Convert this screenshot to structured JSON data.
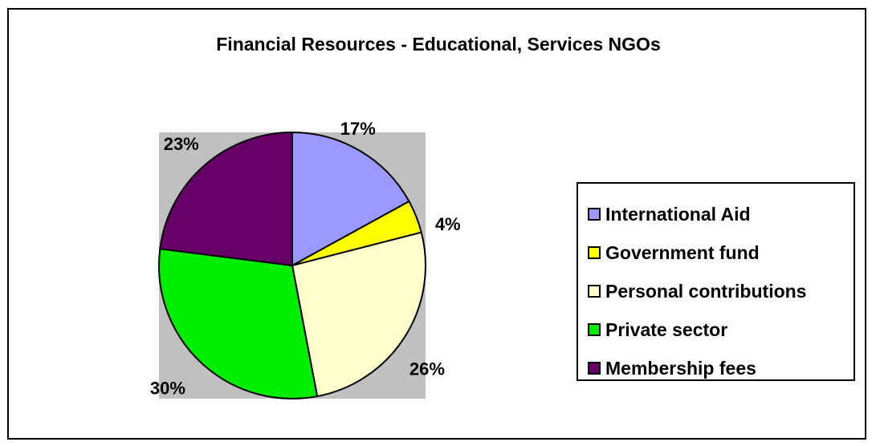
{
  "chart_data": {
    "type": "pie",
    "title": "Financial Resources - Educational, Services NGOs",
    "categories": [
      "International Aid",
      "Government fund",
      "Personal contributions",
      "Private sector",
      "Membership fees"
    ],
    "values": [
      17,
      4,
      26,
      30,
      23
    ],
    "labels": [
      "17%",
      "4%",
      "26%",
      "30%",
      "23%"
    ],
    "colors": [
      "#9999ff",
      "#ffff00",
      "#ffffcc",
      "#00ee00",
      "#660066"
    ],
    "plot_background": "#c0c0c0",
    "legend_position": "right"
  }
}
